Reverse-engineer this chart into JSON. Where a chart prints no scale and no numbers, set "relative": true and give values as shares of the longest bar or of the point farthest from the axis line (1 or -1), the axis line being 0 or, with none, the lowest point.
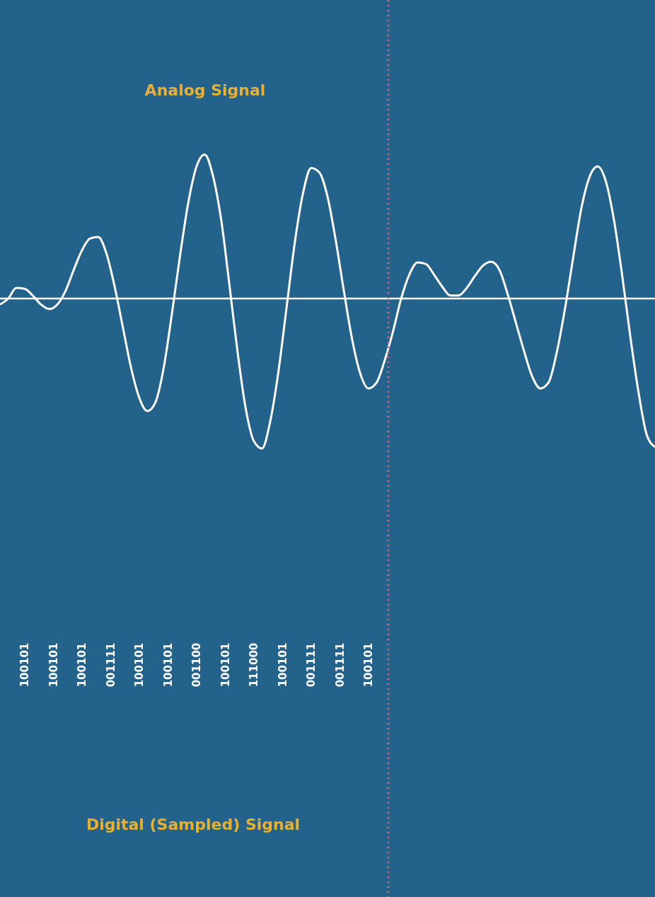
{
  "chart_data": {
    "type": "line",
    "title": "Analog Signal",
    "relative": true,
    "categories": [
      null,
      null,
      null,
      null,
      null,
      null,
      null,
      null,
      null,
      null,
      null,
      null,
      null,
      null,
      null,
      null,
      null,
      null,
      null,
      null,
      null,
      null,
      null,
      null,
      null,
      null,
      null,
      null,
      null,
      null,
      null,
      null,
      null,
      null,
      null,
      null,
      null,
      null,
      null,
      null,
      null,
      null,
      null,
      null,
      null,
      null,
      null,
      null,
      null,
      null,
      null,
      null,
      null,
      null,
      null,
      null,
      null,
      null,
      null,
      null,
      null,
      null,
      null,
      null,
      null,
      null,
      null,
      null,
      null,
      null,
      null,
      null,
      null,
      null,
      null,
      null,
      null,
      null,
      null,
      null,
      null
    ],
    "series": [
      {
        "color": "#ffffff",
        "values": [
          -0.04,
          0.0,
          0.07,
          0.065,
          0.02,
          -0.04,
          -0.07,
          -0.04,
          0.05,
          0.19,
          0.32,
          0.4,
          0.41,
          0.3,
          0.08,
          -0.19,
          -0.46,
          -0.66,
          -0.75,
          -0.69,
          -0.46,
          -0.1,
          0.29,
          0.64,
          0.88,
          0.96,
          0.82,
          0.53,
          0.1,
          -0.35,
          -0.73,
          -0.95,
          -1.0,
          -0.82,
          -0.49,
          -0.06,
          0.37,
          0.7,
          0.87,
          0.84,
          0.68,
          0.39,
          0.05,
          -0.27,
          -0.5,
          -0.6,
          -0.56,
          -0.41,
          -0.22,
          0.0,
          0.16,
          0.24,
          0.23,
          0.16,
          0.08,
          0.02,
          0.02,
          0.07,
          0.15,
          0.22,
          0.245,
          0.19,
          0.03,
          -0.16,
          -0.35,
          -0.52,
          -0.6,
          -0.56,
          -0.36,
          -0.07,
          0.27,
          0.6,
          0.81,
          0.88,
          0.78,
          0.52,
          0.15,
          -0.26,
          -0.63,
          -0.91,
          -0.99
        ]
      }
    ],
    "marker": "none",
    "line_style": "solid",
    "annotations": [
      "100101",
      "100101",
      "100101",
      "001111",
      "100101",
      "100101",
      "001100",
      "100101",
      "111000",
      "100101",
      "001111",
      "001111",
      "100101",
      "Digital (Sampled) Signal"
    ]
  }
}
